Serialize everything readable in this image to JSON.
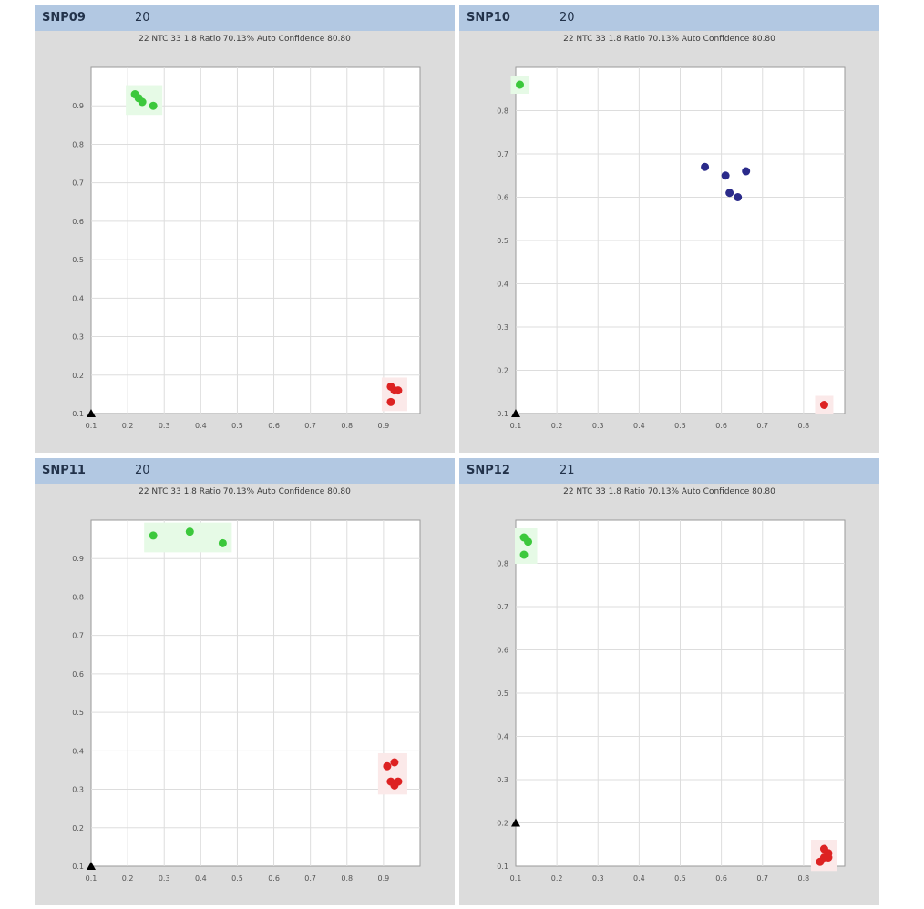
{
  "colors": {
    "allele1": "#3cc83c",
    "heterozygous": "#2a2a8a",
    "allele2": "#dd2222",
    "ntc": "#000000"
  },
  "icons": {
    "ntc": "triangle-icon"
  },
  "panels": [
    {
      "snp": "SNP09",
      "count": "20",
      "info": "22 NTC  33 1.8  Ratio  70.13%  Auto Confidence  80.80"
    },
    {
      "snp": "SNP10",
      "count": "20",
      "info": "22 NTC  33 1.8  Ratio  70.13%  Auto Confidence  80.80"
    },
    {
      "snp": "SNP11",
      "count": "20",
      "info": "22 NTC  33 1.8  Ratio  70.13%  Auto Confidence  80.80"
    },
    {
      "snp": "SNP12",
      "count": "21",
      "info": "22 NTC  33 1.8  Ratio  70.13%  Auto Confidence  80.80"
    }
  ],
  "chart_data": [
    {
      "type": "scatter",
      "title": "SNP09",
      "xlim": [
        0.1,
        1.0
      ],
      "ylim": [
        0.1,
        1.0
      ],
      "xticks": [
        "0.1",
        "0.2",
        "0.3",
        "0.4",
        "0.5",
        "0.6",
        "0.7",
        "0.8",
        "0.9"
      ],
      "yticks": [
        "0.1",
        "0.2",
        "0.3",
        "0.4",
        "0.5",
        "0.6",
        "0.7",
        "0.8",
        "0.9"
      ],
      "series": [
        {
          "group": "allele1",
          "points": [
            [
              0.22,
              0.93
            ],
            [
              0.23,
              0.92
            ],
            [
              0.24,
              0.91
            ],
            [
              0.27,
              0.9
            ]
          ]
        },
        {
          "group": "heterozygous",
          "points": []
        },
        {
          "group": "allele2",
          "points": [
            [
              0.92,
              0.17
            ],
            [
              0.93,
              0.16
            ],
            [
              0.94,
              0.16
            ],
            [
              0.92,
              0.13
            ]
          ]
        },
        {
          "group": "ntc",
          "points": [
            [
              0.1,
              0.1
            ]
          ]
        }
      ]
    },
    {
      "type": "scatter",
      "title": "SNP10",
      "xlim": [
        0.1,
        0.9
      ],
      "ylim": [
        0.1,
        0.9
      ],
      "xticks": [
        "0.1",
        "0.2",
        "0.3",
        "0.4",
        "0.5",
        "0.6",
        "0.7",
        "0.8"
      ],
      "yticks": [
        "0.1",
        "0.2",
        "0.3",
        "0.4",
        "0.5",
        "0.6",
        "0.7",
        "0.8"
      ],
      "series": [
        {
          "group": "allele1",
          "points": [
            [
              0.11,
              0.86
            ]
          ]
        },
        {
          "group": "heterozygous",
          "points": [
            [
              0.56,
              0.67
            ],
            [
              0.61,
              0.65
            ],
            [
              0.66,
              0.66
            ],
            [
              0.62,
              0.61
            ],
            [
              0.64,
              0.6
            ]
          ]
        },
        {
          "group": "allele2",
          "points": [
            [
              0.85,
              0.12
            ]
          ]
        },
        {
          "group": "ntc",
          "points": [
            [
              0.1,
              0.1
            ]
          ]
        }
      ]
    },
    {
      "type": "scatter",
      "title": "SNP11",
      "xlim": [
        0.1,
        1.0
      ],
      "ylim": [
        0.1,
        1.0
      ],
      "xticks": [
        "0.1",
        "0.2",
        "0.3",
        "0.4",
        "0.5",
        "0.6",
        "0.7",
        "0.8",
        "0.9"
      ],
      "yticks": [
        "0.1",
        "0.2",
        "0.3",
        "0.4",
        "0.5",
        "0.6",
        "0.7",
        "0.8",
        "0.9"
      ],
      "series": [
        {
          "group": "allele1",
          "points": [
            [
              0.27,
              0.96
            ],
            [
              0.37,
              0.97
            ],
            [
              0.46,
              0.94
            ]
          ]
        },
        {
          "group": "heterozygous",
          "points": []
        },
        {
          "group": "allele2",
          "points": [
            [
              0.91,
              0.36
            ],
            [
              0.93,
              0.37
            ],
            [
              0.92,
              0.32
            ],
            [
              0.93,
              0.31
            ],
            [
              0.94,
              0.32
            ]
          ]
        },
        {
          "group": "ntc",
          "points": [
            [
              0.1,
              0.1
            ]
          ]
        }
      ]
    },
    {
      "type": "scatter",
      "title": "SNP12",
      "xlim": [
        0.1,
        0.9
      ],
      "ylim": [
        0.1,
        0.9
      ],
      "xticks": [
        "0.1",
        "0.2",
        "0.3",
        "0.4",
        "0.5",
        "0.6",
        "0.7",
        "0.8"
      ],
      "yticks": [
        "0.1",
        "0.2",
        "0.3",
        "0.4",
        "0.5",
        "0.6",
        "0.7",
        "0.8"
      ],
      "series": [
        {
          "group": "allele1",
          "points": [
            [
              0.12,
              0.86
            ],
            [
              0.13,
              0.85
            ],
            [
              0.12,
              0.82
            ]
          ]
        },
        {
          "group": "heterozygous",
          "points": []
        },
        {
          "group": "allele2",
          "points": [
            [
              0.84,
              0.11
            ],
            [
              0.85,
              0.12
            ],
            [
              0.86,
              0.13
            ],
            [
              0.85,
              0.14
            ],
            [
              0.86,
              0.12
            ]
          ]
        },
        {
          "group": "ntc",
          "points": [
            [
              0.1,
              0.2
            ]
          ]
        }
      ]
    }
  ]
}
